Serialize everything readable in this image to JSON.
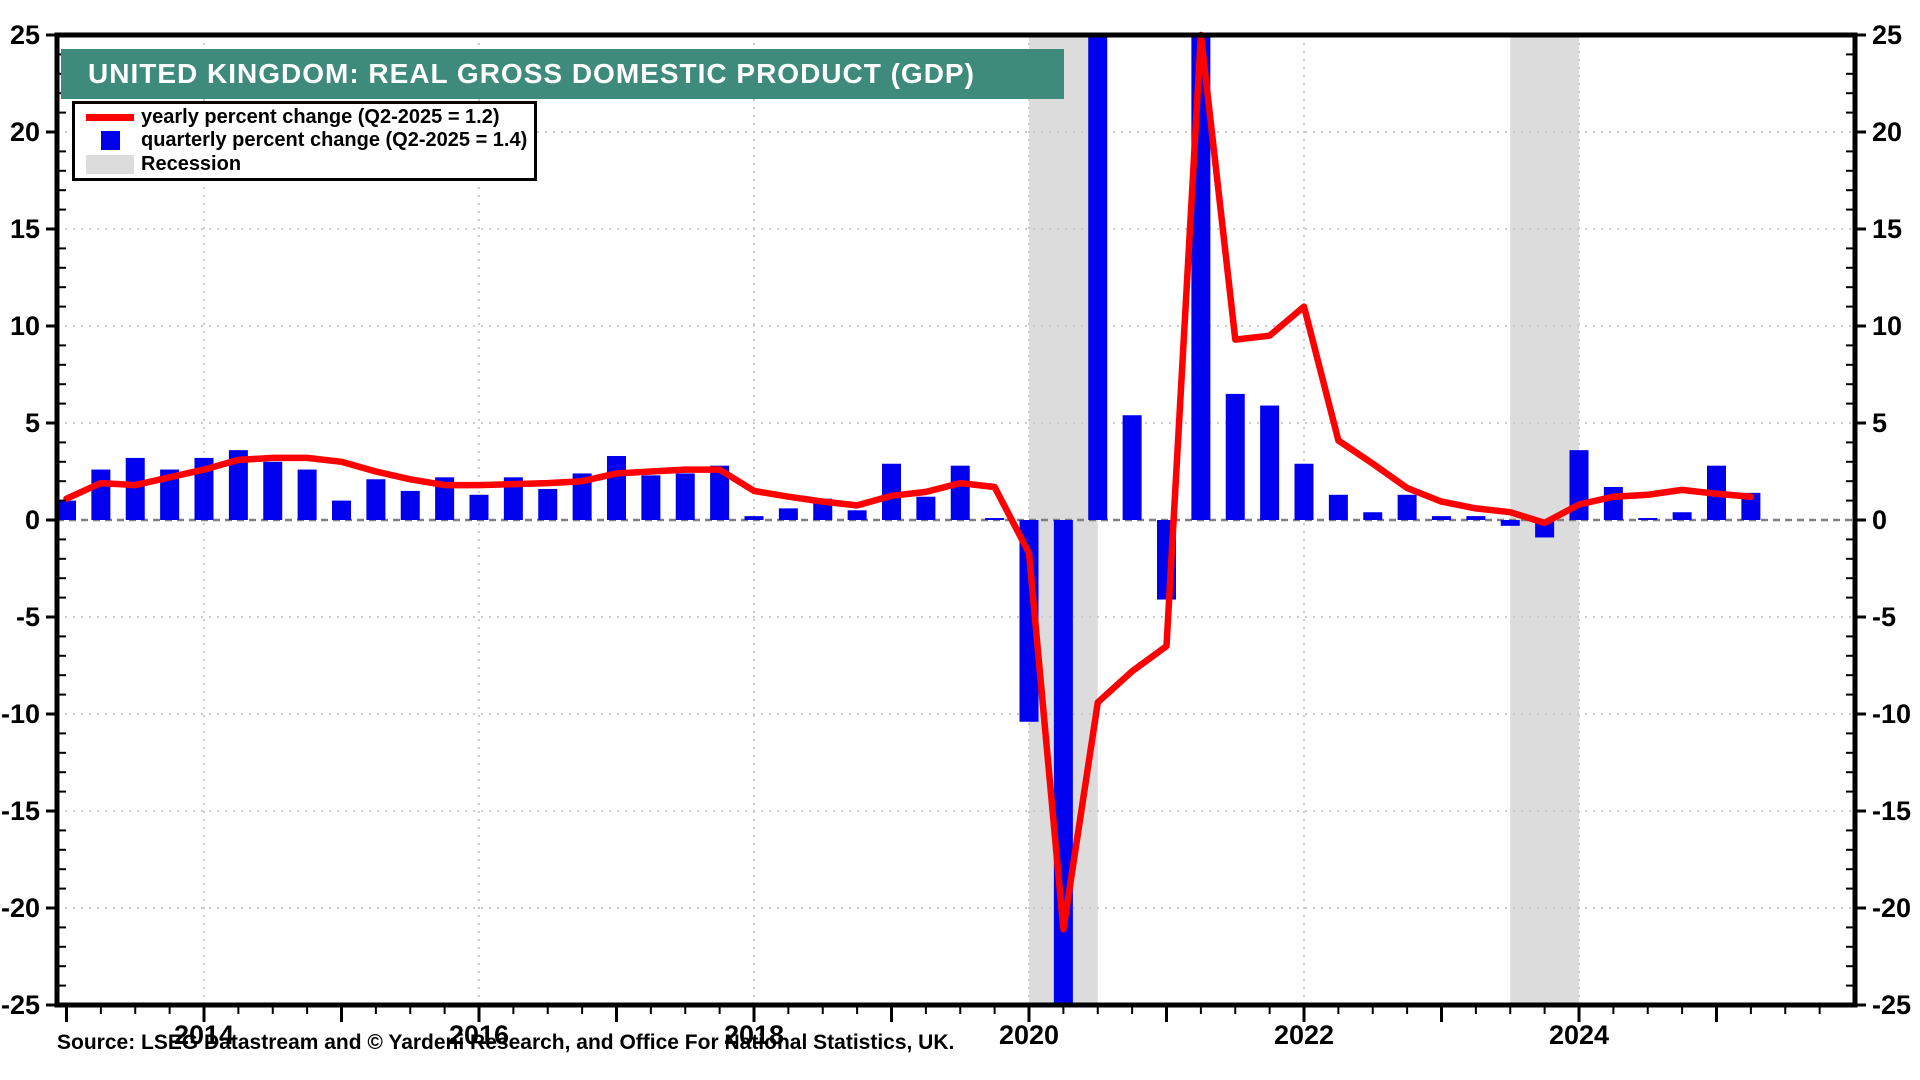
{
  "title": "UNITED KINGDOM: REAL GROSS DOMESTIC PRODUCT (GDP)",
  "source_note": "Source: LSEG Datastream and © Yardeni Research, and Office For National Statistics, UK.",
  "legend": {
    "yearly_label": "yearly percent change (Q2-2025 = 1.2)",
    "quarterly_label": "quarterly percent change (Q2-2025 = 1.4)",
    "recession_label": "Recession"
  },
  "colors": {
    "yearly_line": "#FF0000",
    "quarterly_bar": "#0000EE",
    "recession_band": "#DCDCDC",
    "title_bg": "#3E8A7B",
    "title_fg": "#FFFFFF",
    "grid": "#CBCBCB",
    "zero_line": "#808080",
    "axis": "#000000",
    "text": "#000000"
  },
  "y_axis": {
    "major_tick_labels": [
      "25",
      "20",
      "15",
      "10",
      "5",
      "0",
      "-5",
      "-10",
      "-15",
      "-20",
      "-25"
    ],
    "major_tick_values": [
      25,
      20,
      15,
      10,
      5,
      0,
      -5,
      -10,
      -15,
      -20,
      -25
    ],
    "shown_on_both_sides": true
  },
  "x_axis": {
    "year_labels": [
      "2014",
      "2016",
      "2018",
      "2020",
      "2022",
      "2024"
    ],
    "year_label_values": [
      2014,
      2016,
      2018,
      2020,
      2022,
      2024
    ]
  },
  "chart_data": {
    "type": "bar+line",
    "title": "UNITED KINGDOM: REAL GROSS DOMESTIC PRODUCT (GDP)",
    "ylim": [
      -25,
      25
    ],
    "x_range_years": [
      2012.93,
      2026.0
    ],
    "grid": "dotted horizontal every 5 units, dotted vertical at even years",
    "legend_position": "top-left",
    "clip_note": "bar values of ±26 represent bars that extend beyond the ±25 axis and are clipped (2020-Q2 down, 2020-Q3 up, 2021-Q2 up); the yearly line value 25.5 at 2021-Q2 is clipped at the top border",
    "quarters": [
      "2013-Q1",
      "2013-Q2",
      "2013-Q3",
      "2013-Q4",
      "2014-Q1",
      "2014-Q2",
      "2014-Q3",
      "2014-Q4",
      "2015-Q1",
      "2015-Q2",
      "2015-Q3",
      "2015-Q4",
      "2016-Q1",
      "2016-Q2",
      "2016-Q3",
      "2016-Q4",
      "2017-Q1",
      "2017-Q2",
      "2017-Q3",
      "2017-Q4",
      "2018-Q1",
      "2018-Q2",
      "2018-Q3",
      "2018-Q4",
      "2019-Q1",
      "2019-Q2",
      "2019-Q3",
      "2019-Q4",
      "2020-Q1",
      "2020-Q2",
      "2020-Q3",
      "2020-Q4",
      "2021-Q1",
      "2021-Q2",
      "2021-Q3",
      "2021-Q4",
      "2022-Q1",
      "2022-Q2",
      "2022-Q3",
      "2022-Q4",
      "2023-Q1",
      "2023-Q2",
      "2023-Q3",
      "2023-Q4",
      "2024-Q1",
      "2024-Q2",
      "2024-Q3",
      "2024-Q4",
      "2025-Q1",
      "2025-Q2"
    ],
    "series": [
      {
        "name": "quarterly percent change",
        "type": "bar",
        "values": [
          1.0,
          2.6,
          3.2,
          2.6,
          3.2,
          3.6,
          3.0,
          2.6,
          1.0,
          2.1,
          1.5,
          2.2,
          1.3,
          2.2,
          1.6,
          2.4,
          3.3,
          2.3,
          2.4,
          2.8,
          0.2,
          0.6,
          1.1,
          0.5,
          2.9,
          1.2,
          2.8,
          0.1,
          -10.4,
          -26,
          26,
          5.4,
          -4.1,
          26,
          6.5,
          5.9,
          2.9,
          1.3,
          0.4,
          1.3,
          0.2,
          0.2,
          -0.3,
          -0.9,
          3.6,
          1.7,
          0.1,
          0.4,
          2.8,
          1.4
        ]
      },
      {
        "name": "yearly percent change",
        "type": "line",
        "values": [
          1.1,
          1.9,
          1.8,
          2.2,
          2.6,
          3.1,
          3.2,
          3.2,
          3.0,
          2.5,
          2.1,
          1.8,
          1.8,
          1.85,
          1.9,
          2.0,
          2.4,
          2.5,
          2.6,
          2.6,
          1.5,
          1.2,
          0.95,
          0.75,
          1.25,
          1.45,
          1.9,
          1.7,
          -1.7,
          -21.1,
          -9.4,
          -7.8,
          -6.5,
          25.5,
          9.3,
          9.5,
          11.0,
          4.1,
          2.9,
          1.65,
          0.95,
          0.6,
          0.4,
          -0.15,
          0.8,
          1.2,
          1.3,
          1.55,
          1.35,
          1.2
        ]
      }
    ],
    "recessions": [
      {
        "start": "2020-Q1",
        "end": "2020-Q2"
      },
      {
        "start": "2023-Q3",
        "end": "2023-Q4"
      }
    ]
  }
}
